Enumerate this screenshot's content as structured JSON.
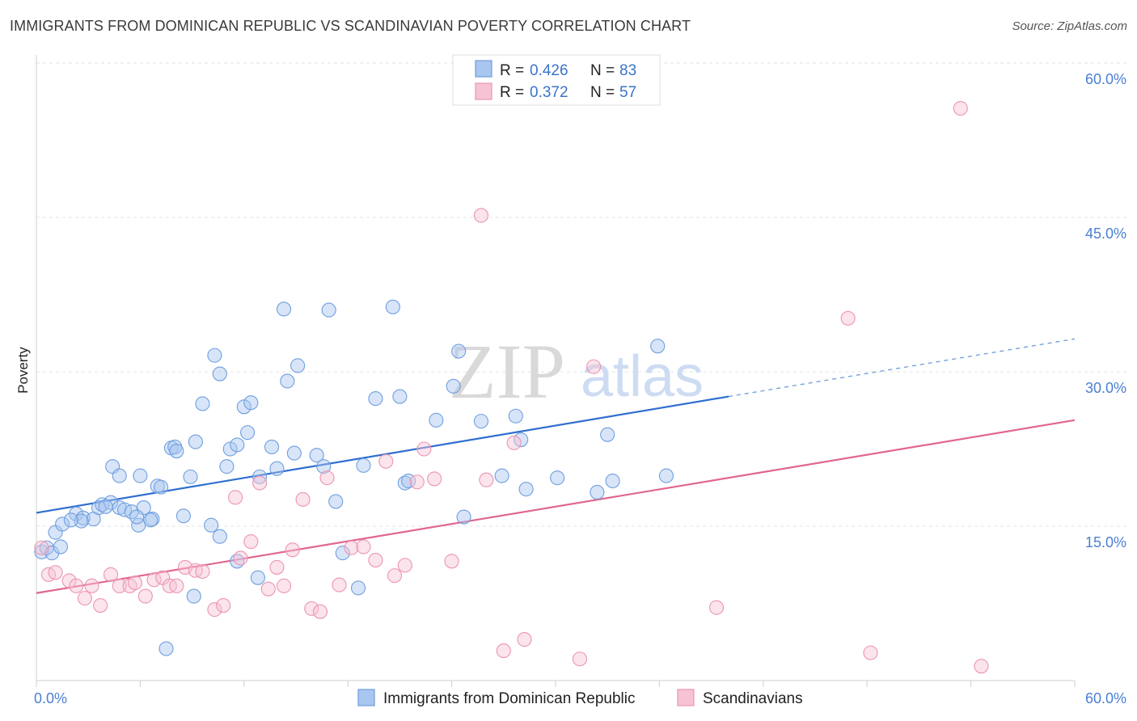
{
  "header": {
    "title": "IMMIGRANTS FROM DOMINICAN REPUBLIC VS SCANDINAVIAN POVERTY CORRELATION CHART",
    "source": "Source: ZipAtlas.com"
  },
  "watermark": {
    "zip": "ZIP",
    "atlas": "atlas"
  },
  "chart_data": {
    "type": "scatter",
    "title": "IMMIGRANTS FROM DOMINICAN REPUBLIC VS SCANDINAVIAN POVERTY CORRELATION CHART",
    "xlabel": "",
    "ylabel": "Poverty",
    "xlim": [
      0,
      60
    ],
    "ylim": [
      0,
      60
    ],
    "x_tick_labels": [
      "0.0%",
      "60.0%"
    ],
    "y_ticks": [
      15,
      30,
      45,
      60
    ],
    "y_tick_labels": [
      "15.0%",
      "30.0%",
      "45.0%",
      "60.0%"
    ],
    "grid": "horizontal dashed",
    "legend_placement": "top-center",
    "series": [
      {
        "name": "Immigrants from Dominican Republic",
        "color": "#6f9fe0",
        "fill": "#a9c6f0",
        "line_color": "#2f6fcf",
        "stats": {
          "r_label": "R =",
          "r": "0.426",
          "n_label": "N =",
          "n": "83"
        },
        "trend": {
          "x0": 0,
          "y0": 16.3,
          "x1": 40,
          "y1": 27.6,
          "dashed_to_x": 60,
          "dashed_to_y": 33.2
        },
        "points": [
          [
            0.3,
            12.5
          ],
          [
            0.6,
            12.9
          ],
          [
            0.9,
            12.4
          ],
          [
            1.4,
            13.0
          ],
          [
            1.1,
            14.4
          ],
          [
            1.5,
            15.2
          ],
          [
            2.3,
            16.2
          ],
          [
            2.7,
            15.8
          ],
          [
            3.3,
            15.7
          ],
          [
            3.6,
            16.8
          ],
          [
            2.6,
            15.5
          ],
          [
            3.8,
            17.1
          ],
          [
            4.3,
            17.3
          ],
          [
            4.4,
            20.8
          ],
          [
            4.8,
            19.9
          ],
          [
            4.8,
            16.8
          ],
          [
            5.1,
            16.6
          ],
          [
            5.5,
            16.4
          ],
          [
            5.9,
            15.1
          ],
          [
            6.2,
            16.8
          ],
          [
            6.0,
            19.9
          ],
          [
            6.7,
            15.7
          ],
          [
            7.0,
            18.9
          ],
          [
            7.2,
            18.8
          ],
          [
            7.8,
            22.6
          ],
          [
            8.0,
            22.7
          ],
          [
            8.1,
            22.3
          ],
          [
            8.5,
            16.0
          ],
          [
            8.9,
            19.8
          ],
          [
            9.2,
            23.2
          ],
          [
            9.6,
            26.9
          ],
          [
            10.1,
            15.1
          ],
          [
            10.3,
            31.6
          ],
          [
            10.6,
            14.0
          ],
          [
            10.6,
            29.8
          ],
          [
            11.0,
            20.8
          ],
          [
            11.2,
            22.5
          ],
          [
            11.6,
            11.6
          ],
          [
            11.6,
            22.9
          ],
          [
            12.0,
            26.6
          ],
          [
            12.2,
            24.1
          ],
          [
            12.4,
            27.0
          ],
          [
            12.8,
            10.0
          ],
          [
            12.9,
            19.8
          ],
          [
            13.6,
            22.7
          ],
          [
            13.9,
            20.6
          ],
          [
            14.3,
            36.1
          ],
          [
            14.5,
            29.1
          ],
          [
            14.9,
            22.1
          ],
          [
            15.1,
            30.6
          ],
          [
            16.2,
            21.9
          ],
          [
            16.6,
            20.8
          ],
          [
            16.9,
            36.0
          ],
          [
            17.3,
            17.4
          ],
          [
            17.7,
            12.4
          ],
          [
            18.6,
            9.0
          ],
          [
            18.9,
            20.9
          ],
          [
            19.6,
            27.4
          ],
          [
            20.6,
            36.3
          ],
          [
            21.0,
            27.6
          ],
          [
            21.3,
            19.2
          ],
          [
            21.5,
            19.4
          ],
          [
            23.1,
            25.3
          ],
          [
            24.1,
            28.6
          ],
          [
            24.4,
            32.0
          ],
          [
            24.7,
            15.9
          ],
          [
            25.7,
            25.2
          ],
          [
            26.9,
            19.9
          ],
          [
            27.7,
            25.7
          ],
          [
            28.0,
            23.4
          ],
          [
            28.3,
            18.6
          ],
          [
            30.1,
            19.7
          ],
          [
            32.4,
            18.3
          ],
          [
            33.0,
            23.9
          ],
          [
            33.3,
            19.4
          ],
          [
            35.9,
            32.5
          ],
          [
            36.4,
            19.9
          ],
          [
            7.5,
            3.1
          ],
          [
            9.1,
            8.2
          ],
          [
            5.8,
            15.9
          ],
          [
            4.0,
            16.9
          ],
          [
            6.6,
            15.6
          ],
          [
            2.0,
            15.6
          ]
        ]
      },
      {
        "name": "Scandinavians",
        "color": "#ec94b1",
        "fill": "#f6c3d4",
        "line_color": "#e0678f",
        "stats": {
          "r_label": "R =",
          "r": "0.372",
          "n_label": "N =",
          "n": "57"
        },
        "trend": {
          "x0": 0,
          "y0": 8.5,
          "x1": 60,
          "y1": 25.3
        },
        "points": [
          [
            0.3,
            12.9
          ],
          [
            0.7,
            10.3
          ],
          [
            1.1,
            10.5
          ],
          [
            1.9,
            9.7
          ],
          [
            2.3,
            9.2
          ],
          [
            2.8,
            8.0
          ],
          [
            3.2,
            9.2
          ],
          [
            3.7,
            7.3
          ],
          [
            4.3,
            10.3
          ],
          [
            4.8,
            9.2
          ],
          [
            5.4,
            9.2
          ],
          [
            5.7,
            9.5
          ],
          [
            6.3,
            8.2
          ],
          [
            6.8,
            9.8
          ],
          [
            7.3,
            10.0
          ],
          [
            7.7,
            9.2
          ],
          [
            8.1,
            9.2
          ],
          [
            8.6,
            11.0
          ],
          [
            9.2,
            10.7
          ],
          [
            9.6,
            10.6
          ],
          [
            10.3,
            6.9
          ],
          [
            10.8,
            7.3
          ],
          [
            11.5,
            17.8
          ],
          [
            11.8,
            11.9
          ],
          [
            12.4,
            13.5
          ],
          [
            12.9,
            19.2
          ],
          [
            13.4,
            8.9
          ],
          [
            13.9,
            11.0
          ],
          [
            14.3,
            9.2
          ],
          [
            14.8,
            12.7
          ],
          [
            15.4,
            17.6
          ],
          [
            15.9,
            7.0
          ],
          [
            16.4,
            6.7
          ],
          [
            16.8,
            19.7
          ],
          [
            17.5,
            9.3
          ],
          [
            18.2,
            12.9
          ],
          [
            18.9,
            13.0
          ],
          [
            19.6,
            11.7
          ],
          [
            20.2,
            21.3
          ],
          [
            20.7,
            10.2
          ],
          [
            21.3,
            11.2
          ],
          [
            22.0,
            19.3
          ],
          [
            22.4,
            22.5
          ],
          [
            23.0,
            19.6
          ],
          [
            24.0,
            11.6
          ],
          [
            25.7,
            45.2
          ],
          [
            26.0,
            19.5
          ],
          [
            27.0,
            2.9
          ],
          [
            27.6,
            23.1
          ],
          [
            28.2,
            4.0
          ],
          [
            31.4,
            2.1
          ],
          [
            32.2,
            30.5
          ],
          [
            39.3,
            7.1
          ],
          [
            46.9,
            35.2
          ],
          [
            48.2,
            2.7
          ],
          [
            53.4,
            55.6
          ],
          [
            54.6,
            1.4
          ]
        ]
      }
    ],
    "bottom_legend": [
      "Immigrants from Dominican Republic",
      "Scandinavians"
    ]
  }
}
